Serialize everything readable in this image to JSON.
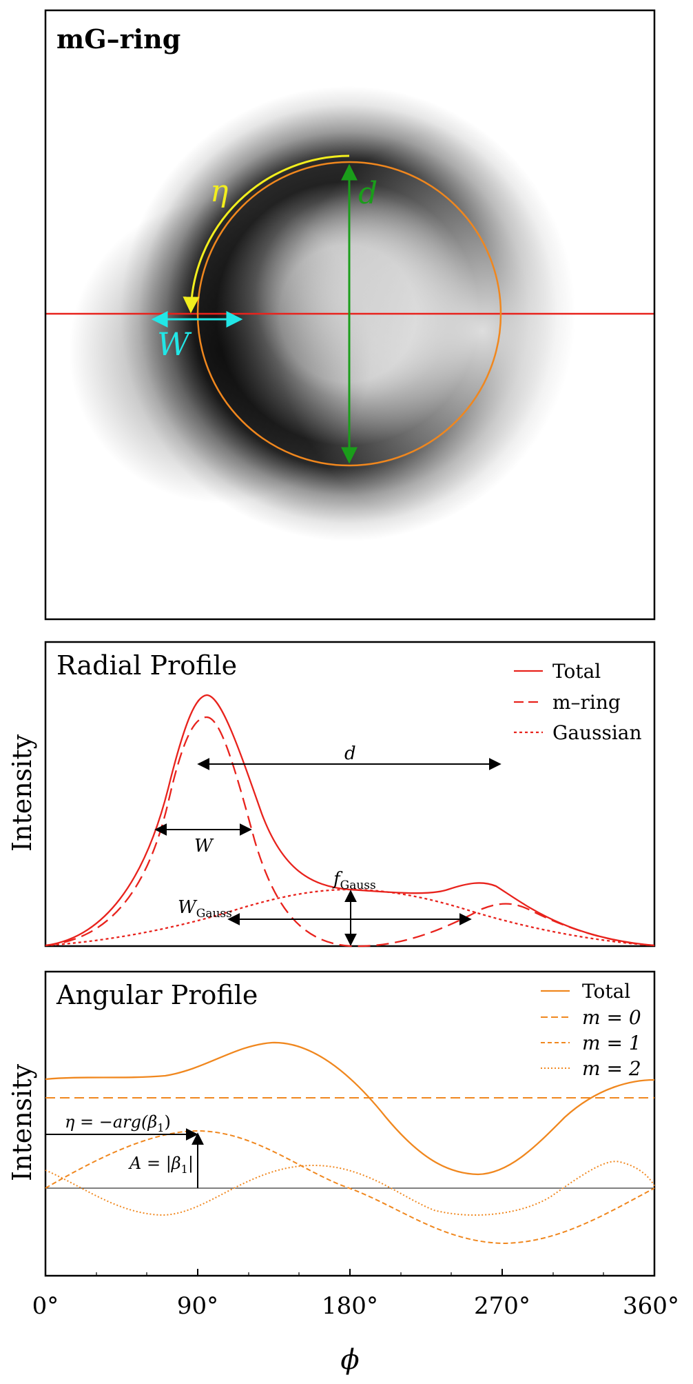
{
  "ring_panel": {
    "title": "mG–ring",
    "label_eta": "η",
    "label_d": "d",
    "label_W": "W",
    "colors": {
      "red": "#e8221c",
      "orange": "#f0871e",
      "green": "#1a9d1a",
      "yellow": "#f2ee1e",
      "cyan": "#22e6e6"
    }
  },
  "radial_panel": {
    "title": "Radial Profile",
    "ylabel": "Intensity",
    "legend": [
      "Total",
      "m–ring",
      "Gaussian"
    ],
    "annotations": {
      "d": "d",
      "W": "W",
      "f_gauss_main": "f",
      "f_gauss_sub": "Gauss",
      "w_gauss_main": "W",
      "w_gauss_sub": "Gauss"
    }
  },
  "angular_panel": {
    "title": "Angular Profile",
    "ylabel": "Intensity",
    "legend": [
      "Total",
      "m = 0",
      "m = 1",
      "m = 2"
    ],
    "annotations": {
      "eta": "η = −arg(β",
      "eta_sub": "1",
      "eta_close": ")",
      "amp": "A = |β",
      "amp_sub": "1",
      "amp_close": "|"
    }
  },
  "x_axis": {
    "label": "ϕ",
    "ticks": [
      "0°",
      "90°",
      "180°",
      "270°",
      "360°"
    ]
  }
}
